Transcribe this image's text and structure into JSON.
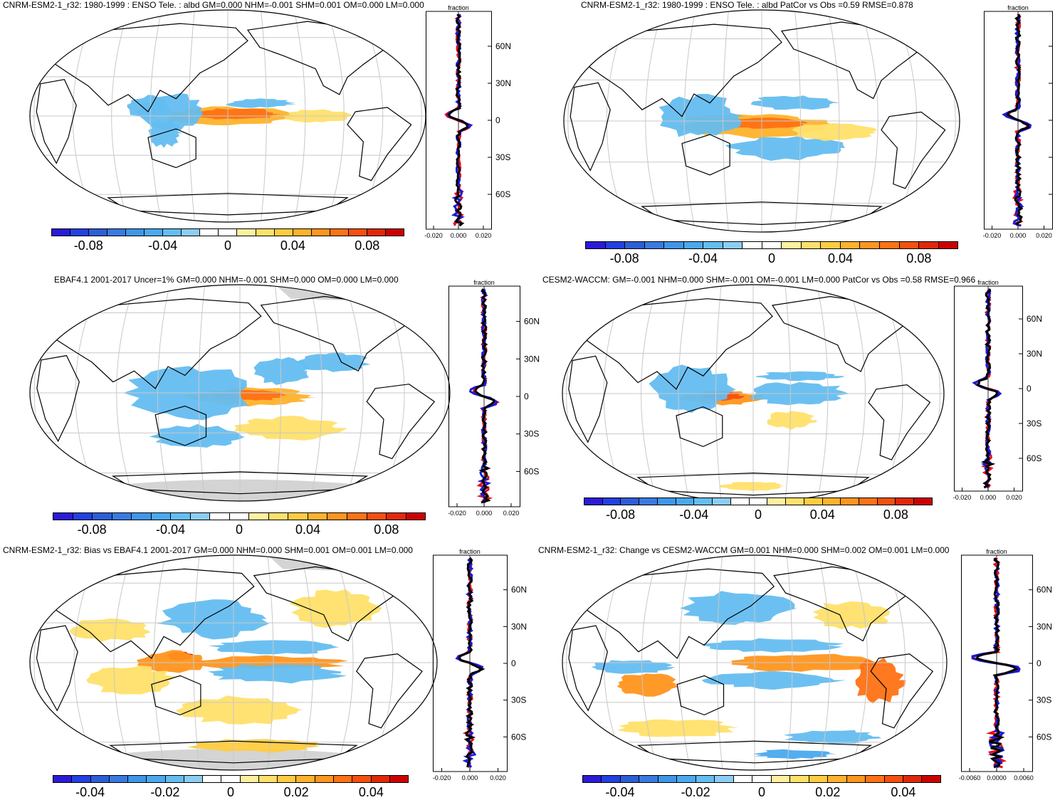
{
  "colors": {
    "scale": [
      "#2b1bd8",
      "#2340e0",
      "#2c5ed8",
      "#3a7ae0",
      "#3f96e8",
      "#4aa9ee",
      "#64bdf0",
      "#8ccdf2",
      "#ffffff",
      "#ffffff",
      "#fff0a0",
      "#ffe06a",
      "#ffcc40",
      "#ffb22a",
      "#ff951e",
      "#ff7214",
      "#f4500e",
      "#e0280a",
      "#cc0000"
    ],
    "land_outline": "#000000",
    "grid": "#c8c8c8",
    "missing": "#d4d4d4",
    "zonal_obs": "#e81010",
    "zonal_model": "#1a1ad8",
    "zonal_mean": "#000000"
  },
  "panels": [
    {
      "id": "p1",
      "title": "CNRM-ESM2-1_r32: 1980-1999 : ENSO Tele. : albd GM=0.000 NHM=-0.001 SHM=0.001 OM=0.000 LM=0.000",
      "zonal_label": "fraction",
      "lat_labels": [
        "60N",
        "30N",
        "0",
        "30S",
        "60S"
      ],
      "x_ticks": [
        "-0.020",
        "0.000",
        "0.020"
      ],
      "cbar_labels": [
        "-0.08",
        "-0.04",
        "0",
        "0.04",
        "0.08"
      ]
    },
    {
      "id": "p2",
      "title": "CNRM-ESM2-1_r32: 1980-1999 : ENSO Tele. : albd PatCor vs Obs =0.59 RMSE=0.878",
      "zonal_label": "fraction",
      "lat_labels": [],
      "x_ticks": [
        "-0.020",
        "0.000",
        "0.020"
      ],
      "cbar_labels": [
        "-0.08",
        "-0.04",
        "0",
        "0.04",
        "0.08"
      ]
    },
    {
      "id": "p3",
      "title": "EBAF4.1 2001-2017 Uncer=1% GM=0.000 NHM=-0.001 SHM=0.000 OM=0.000 LM=0.000",
      "zonal_label": "fraction",
      "lat_labels": [
        "60N",
        "30N",
        "0",
        "30S",
        "60S"
      ],
      "x_ticks": [
        "-0.020",
        "0.000",
        "0.020"
      ],
      "cbar_labels": [
        "-0.08",
        "-0.04",
        "0",
        "0.04",
        "0.08"
      ]
    },
    {
      "id": "p4",
      "title": "CESM2-WACCM: GM=-0.001 NHM=0.000 SHM=-0.001 OM=-0.001 LM=0.000 PatCor vs Obs =0.58 RMSE=0.966",
      "zonal_label": "fraction",
      "lat_labels": [
        "60N",
        "30N",
        "0",
        "30S",
        "60S"
      ],
      "x_ticks": [
        "-0.020",
        "0.000",
        "0.020"
      ],
      "cbar_labels": [
        "-0.08",
        "-0.04",
        "0",
        "0.04",
        "0.08"
      ]
    },
    {
      "id": "p5",
      "title": "CNRM-ESM2-1_r32: Bias vs EBAF4.1 2001-2017 GM=0.000 NHM=0.000 SHM=0.001 OM=0.001 LM=0.000",
      "zonal_label": "fraction",
      "lat_labels": [
        "60N",
        "30N",
        "0",
        "30S",
        "60S"
      ],
      "x_ticks": [
        "-0.020",
        "0.000",
        "0.020"
      ],
      "cbar_labels": [
        "-0.04",
        "-0.02",
        "0",
        "0.02",
        "0.04"
      ]
    },
    {
      "id": "p6",
      "title": "CNRM-ESM2-1_r32: Change vs CESM2-WACCM GM=0.001 NHM=0.000 SHM=0.002 OM=0.001 LM=0.000",
      "zonal_label": "fraction",
      "lat_labels": [
        "60N",
        "30N",
        "0",
        "30S",
        "60S"
      ],
      "x_ticks": [
        "-0.0060",
        "0.0000",
        "0.0060"
      ],
      "cbar_labels": [
        "-0.04",
        "-0.02",
        "0",
        "0.02",
        "0.04"
      ]
    }
  ],
  "chart_data": [
    {
      "type": "heatmap",
      "title": "CNRM-ESM2-1_r32: 1980-1999 : ENSO Tele. : albd GM=0.000 NHM=-0.001 SHM=0.001 OM=0.000 LM=0.000",
      "xlabel": "fraction",
      "colorbar_ticks": [
        -0.08,
        -0.04,
        0,
        0.04,
        0.08
      ],
      "lat_ticks": [
        "60N",
        "30N",
        "0",
        "30S",
        "60S"
      ],
      "x_range": [
        -0.02,
        0.02
      ]
    },
    {
      "type": "heatmap",
      "title": "CNRM-ESM2-1_r32: 1980-1999 : ENSO Tele. : albd PatCor vs Obs =0.59 RMSE=0.878",
      "xlabel": "fraction",
      "colorbar_ticks": [
        -0.08,
        -0.04,
        0,
        0.04,
        0.08
      ],
      "x_range": [
        -0.02,
        0.02
      ]
    },
    {
      "type": "heatmap",
      "title": "EBAF4.1 2001-2017 Uncer=1% GM=0.000 NHM=-0.001 SHM=0.000 OM=0.000 LM=0.000",
      "xlabel": "fraction",
      "colorbar_ticks": [
        -0.08,
        -0.04,
        0,
        0.04,
        0.08
      ],
      "lat_ticks": [
        "60N",
        "30N",
        "0",
        "30S",
        "60S"
      ],
      "x_range": [
        -0.02,
        0.02
      ]
    },
    {
      "type": "heatmap",
      "title": "CESM2-WACCM: GM=-0.001 NHM=0.000 SHM=-0.001 OM=-0.001 LM=0.000 PatCor vs Obs =0.58 RMSE=0.966",
      "xlabel": "fraction",
      "colorbar_ticks": [
        -0.08,
        -0.04,
        0,
        0.04,
        0.08
      ],
      "lat_ticks": [
        "60N",
        "30N",
        "0",
        "30S",
        "60S"
      ],
      "x_range": [
        -0.02,
        0.02
      ]
    },
    {
      "type": "heatmap",
      "title": "CNRM-ESM2-1_r32: Bias vs EBAF4.1 2001-2017 GM=0.000 NHM=0.000 SHM=0.001 OM=0.001 LM=0.000",
      "xlabel": "fraction",
      "colorbar_ticks": [
        -0.04,
        -0.02,
        0,
        0.02,
        0.04
      ],
      "lat_ticks": [
        "60N",
        "30N",
        "0",
        "30S",
        "60S"
      ],
      "x_range": [
        -0.02,
        0.02
      ]
    },
    {
      "type": "heatmap",
      "title": "CNRM-ESM2-1_r32: Change vs CESM2-WACCM GM=0.001 NHM=0.000 SHM=0.002 OM=0.001 LM=0.000",
      "xlabel": "fraction",
      "colorbar_ticks": [
        -0.04,
        -0.02,
        0,
        0.02,
        0.04
      ],
      "lat_ticks": [
        "60N",
        "30N",
        "0",
        "30S",
        "60S"
      ],
      "x_range": [
        -0.006,
        0.006
      ]
    }
  ]
}
